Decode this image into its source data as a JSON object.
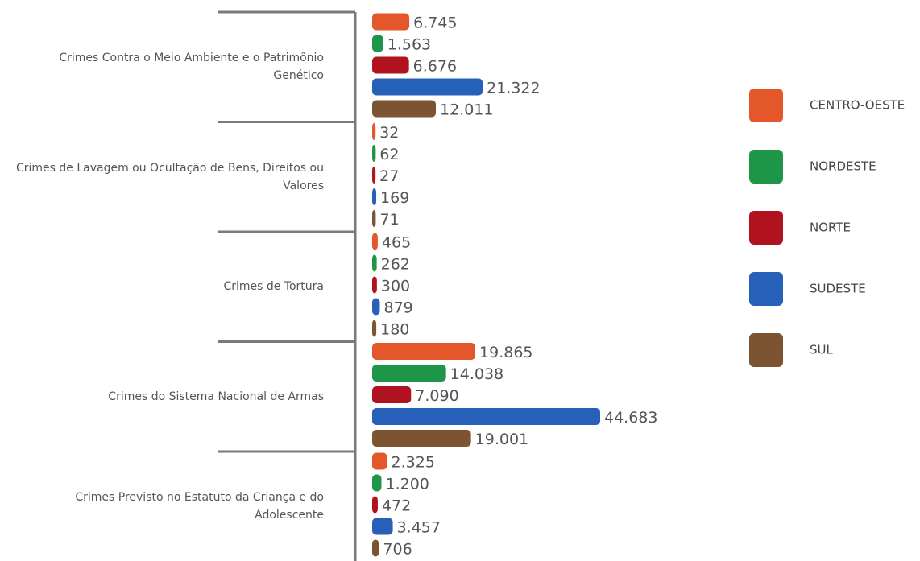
{
  "chart_data": {
    "type": "bar",
    "orientation": "horizontal",
    "categories": [
      "Crimes Contra o Meio Ambiente e o Patrimônio Genético",
      "Crimes de Lavagem ou Ocultação de Bens, Direitos ou Valores",
      "Crimes de Tortura",
      "Crimes do Sistema Nacional de Armas",
      "Crimes Previsto no Estatuto da Criança e do Adolescente"
    ],
    "series": [
      {
        "name": "CENTRO-OESTE",
        "color": "#e4572b",
        "values": [
          6745,
          32,
          465,
          19865,
          2325
        ],
        "value_labels": [
          "6.745",
          "32",
          "465",
          "19.865",
          "2.325"
        ]
      },
      {
        "name": "NORDESTE",
        "color": "#1e9648",
        "values": [
          1563,
          62,
          262,
          14038,
          1200
        ],
        "value_labels": [
          "1.563",
          "62",
          "262",
          "14.038",
          "1.200"
        ]
      },
      {
        "name": "NORTE",
        "color": "#b01220",
        "values": [
          6676,
          27,
          300,
          7090,
          472
        ],
        "value_labels": [
          "6.676",
          "27",
          "300",
          "7.090",
          "472"
        ]
      },
      {
        "name": "SUDESTE",
        "color": "#2760b8",
        "values": [
          21322,
          169,
          879,
          44683,
          3457
        ],
        "value_labels": [
          "21.322",
          "169",
          "879",
          "44.683",
          "3.457"
        ]
      },
      {
        "name": "SUL",
        "color": "#7c5431",
        "values": [
          12011,
          71,
          180,
          19001,
          706
        ],
        "value_labels": [
          "12.011",
          "71",
          "180",
          "19.001",
          "706"
        ]
      }
    ]
  }
}
